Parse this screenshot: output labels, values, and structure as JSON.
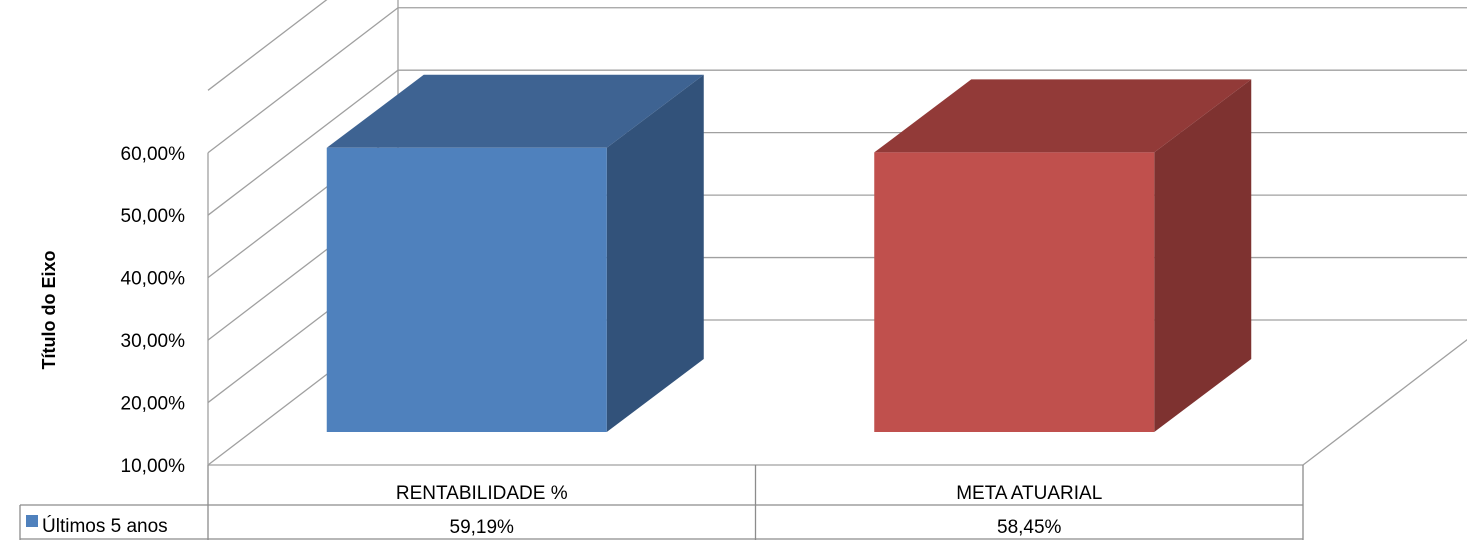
{
  "chart_data": {
    "type": "bar",
    "title": "",
    "xlabel": "",
    "ylabel": "Título do Eixo",
    "categories": [
      "RENTABILIDADE %",
      "META ATUARIAL"
    ],
    "series": [
      {
        "name": "Últimos 5 anos",
        "values": [
          59.19,
          58.45
        ],
        "value_labels": [
          "59,19%",
          "58,45%"
        ]
      }
    ],
    "yticks": [
      "10,00%",
      "20,00%",
      "30,00%",
      "40,00%",
      "50,00%",
      "60,00%"
    ],
    "ylim": [
      10,
      60
    ],
    "grid": true,
    "style": "3d-columns-with-data-table",
    "colors": {
      "blue_front": "#4F81BD",
      "blue_top": "#3E6392",
      "blue_side": "#32527A",
      "red_front": "#C0504D",
      "red_top": "#923A38",
      "red_side": "#7E3230",
      "grid": "#A0A0A0"
    }
  }
}
